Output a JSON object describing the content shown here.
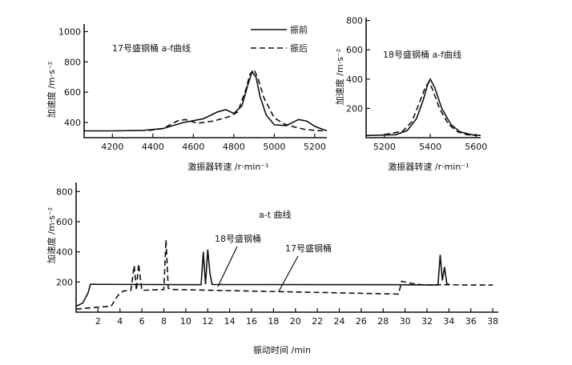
{
  "chart_data": [
    {
      "type": "line",
      "panel": "top-left",
      "title": "17号盛钢桶 a-f曲线",
      "xlabel": "激振器转速 /r·min⁻¹",
      "ylabel": "加速度 /m·s⁻²",
      "xlim": [
        4060,
        5260
      ],
      "ylim": [
        300,
        1050
      ],
      "xticks": [
        4200,
        4400,
        4600,
        4800,
        5000,
        5200
      ],
      "yticks": [
        400,
        600,
        800,
        1000
      ],
      "legend": {
        "position": "top-right",
        "entries": [
          {
            "name": "振前",
            "style": "solid"
          },
          {
            "name": "振后",
            "style": "dashed"
          }
        ]
      },
      "series": [
        {
          "name": "振前",
          "style": "solid",
          "x": [
            4060,
            4200,
            4350,
            4450,
            4550,
            4650,
            4720,
            4760,
            4800,
            4840,
            4870,
            4890,
            4910,
            4930,
            4960,
            5000,
            5060,
            5120,
            5160,
            5200,
            5260
          ],
          "y": [
            345,
            345,
            348,
            360,
            400,
            425,
            470,
            485,
            460,
            510,
            650,
            735,
            700,
            570,
            450,
            385,
            380,
            420,
            410,
            375,
            345
          ]
        },
        {
          "name": "振后",
          "style": "dashed",
          "x": [
            4380,
            4450,
            4520,
            4560,
            4620,
            4700,
            4780,
            4820,
            4860,
            4880,
            4900,
            4920,
            4950,
            5000,
            5050,
            5100,
            5150,
            5200,
            5240
          ],
          "y": [
            348,
            360,
            410,
            420,
            395,
            410,
            440,
            470,
            620,
            720,
            750,
            690,
            560,
            430,
            390,
            370,
            355,
            348,
            345
          ]
        }
      ]
    },
    {
      "type": "line",
      "panel": "top-right",
      "title": "18号盛钢桶 a-f曲线",
      "xlabel": "激振器转速 /r·min⁻¹",
      "ylabel": "加速度 /m·s⁻²",
      "xlim": [
        5120,
        5620
      ],
      "ylim": [
        0,
        820
      ],
      "xticks": [
        5200,
        5400,
        5600
      ],
      "yticks": [
        200,
        400,
        600,
        800
      ],
      "series": [
        {
          "name": "振前",
          "style": "solid",
          "x": [
            5120,
            5250,
            5300,
            5340,
            5370,
            5390,
            5400,
            5420,
            5450,
            5490,
            5530,
            5580,
            5620
          ],
          "y": [
            15,
            20,
            50,
            130,
            260,
            370,
            400,
            340,
            200,
            90,
            40,
            20,
            15
          ]
        },
        {
          "name": "振后",
          "style": "dashed",
          "x": [
            5200,
            5280,
            5320,
            5350,
            5380,
            5395,
            5410,
            5440,
            5480,
            5520,
            5560,
            5600
          ],
          "y": [
            20,
            45,
            110,
            230,
            350,
            380,
            330,
            200,
            90,
            40,
            20,
            15
          ]
        }
      ]
    },
    {
      "type": "line",
      "panel": "bottom",
      "title": "a-t 曲线",
      "xlabel": "振动时间 /min",
      "ylabel": "加速度 /m·s⁻²",
      "xlim": [
        0,
        38.5
      ],
      "ylim": [
        0,
        860
      ],
      "xticks": [
        2,
        4,
        6,
        8,
        10,
        12,
        14,
        16,
        18,
        20,
        22,
        24,
        26,
        28,
        30,
        32,
        34,
        36,
        38
      ],
      "yticks": [
        200,
        400,
        600,
        800
      ],
      "annotations": [
        "18号盛钢桶",
        "17号盛钢桶"
      ],
      "series": [
        {
          "name": "18号盛钢桶",
          "style": "solid",
          "x": [
            0,
            0.6,
            1.1,
            1.3,
            1.6,
            11.4,
            11.6,
            11.8,
            12.0,
            12.2,
            12.4,
            12.6,
            29.6,
            33.0,
            33.2,
            33.4,
            33.6,
            33.8,
            34.0
          ],
          "y": [
            40,
            60,
            130,
            185,
            185,
            182,
            400,
            185,
            415,
            260,
            185,
            183,
            182,
            180,
            380,
            210,
            300,
            190,
            185
          ]
        },
        {
          "name": "17号盛钢桶",
          "style": "dashed",
          "x": [
            0,
            1.5,
            3.2,
            3.8,
            4.3,
            5.0,
            5.3,
            5.5,
            5.7,
            6.0,
            8.0,
            8.2,
            8.4,
            8.6,
            9.0,
            29.4,
            29.7,
            30.6,
            31.5,
            32.5,
            33.0,
            34.0,
            36.0,
            38.0
          ],
          "y": [
            20,
            30,
            40,
            110,
            140,
            145,
            310,
            145,
            320,
            145,
            150,
            480,
            160,
            150,
            150,
            120,
            205,
            190,
            182,
            180,
            182,
            182,
            180,
            180
          ]
        }
      ]
    }
  ]
}
